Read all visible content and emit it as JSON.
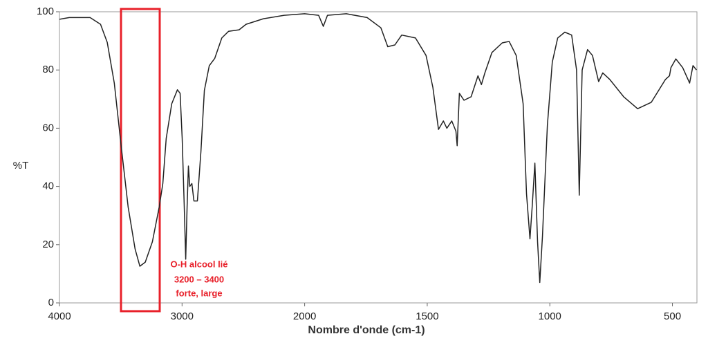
{
  "chart_data": {
    "type": "line",
    "xlabel": "Nombre d'onde (cm-1)",
    "ylabel": "%T",
    "xlim": [
      4000,
      400
    ],
    "xticks": [
      4000,
      3000,
      2000,
      1500,
      1000,
      500
    ],
    "ylim": [
      0,
      100
    ],
    "yticks": [
      0,
      20,
      40,
      60,
      80,
      100
    ],
    "grid": false,
    "annotation": [
      "O-H alcool lié",
      "3200 – 3400",
      "forte, large"
    ],
    "series": [
      {
        "color": "#222222",
        "x": [
          4000,
          3920,
          3750,
          3665,
          3610,
          3553,
          3497,
          3440,
          3383,
          3344,
          3300,
          3242,
          3186,
          3157,
          3129,
          3084,
          3038,
          3016,
          2999,
          2982,
          2970,
          2959,
          2948,
          2937,
          2920,
          2903,
          2875,
          2846,
          2818,
          2778,
          2733,
          2676,
          2620,
          2535,
          2478,
          2337,
          2167,
          2000,
          1943,
          1924,
          1907,
          1830,
          1745,
          1689,
          1661,
          1632,
          1604,
          1548,
          1505,
          1477,
          1454,
          1434,
          1420,
          1400,
          1383,
          1378,
          1369,
          1350,
          1321,
          1293,
          1279,
          1265,
          1236,
          1194,
          1166,
          1137,
          1109,
          1095,
          1081,
          1072,
          1061,
          1050,
          1041,
          1030,
          1010,
          990,
          968,
          939,
          911,
          891,
          880,
          868,
          846,
          826,
          801,
          784,
          755,
          699,
          642,
          586,
          529,
          512,
          506,
          486,
          458,
          430,
          416,
          402
        ],
        "values": [
          97.4,
          98,
          98,
          95.7,
          89.5,
          75.5,
          54,
          33,
          18.5,
          12.6,
          14,
          21,
          33,
          41,
          56.5,
          68.4,
          73.2,
          72,
          56.5,
          33,
          15,
          33,
          47,
          40,
          41,
          35,
          35,
          52,
          73,
          81.5,
          84,
          91,
          93.3,
          93.8,
          95.7,
          97.6,
          98.8,
          99.3,
          98.8,
          95,
          98.8,
          99.3,
          98,
          94.5,
          88,
          88.6,
          92,
          91,
          85,
          74,
          59.6,
          62.5,
          60,
          62.5,
          59,
          54,
          72,
          69.6,
          70.8,
          78,
          75,
          79,
          86,
          89.3,
          89.8,
          85,
          68.4,
          37.5,
          22,
          33,
          48,
          21,
          7,
          23,
          61,
          82.7,
          91,
          93,
          92,
          80,
          37,
          80,
          87,
          85,
          76,
          79,
          76.7,
          70.8,
          66.7,
          68.9,
          76.7,
          78,
          80.8,
          83.8,
          80.8,
          75.5,
          81.5,
          80
        ]
      }
    ]
  }
}
